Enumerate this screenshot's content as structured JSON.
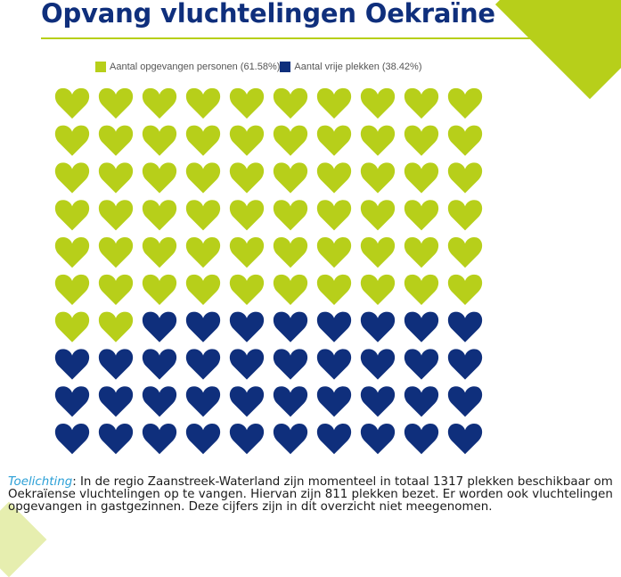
{
  "title": "Opvang vluchtelingen Oekraïne",
  "colors": {
    "accent": "#b7cf1a",
    "navy": "#0f2f7c",
    "note_label": "#2a9fd6"
  },
  "legend": {
    "items": [
      {
        "label": "Aantal opgevangen personen (61.58%)"
      },
      {
        "label": "Aantal vrije plekken (38.42%)"
      }
    ]
  },
  "chart_data": {
    "type": "waffle",
    "icon": "heart-icon",
    "rows": 10,
    "columns": 10,
    "series": [
      {
        "name": "Aantal opgevangen personen (61.58%)",
        "percent": 61.58,
        "icons": 62
      },
      {
        "name": "Aantal vrije plekken (38.42%)",
        "percent": 38.42,
        "icons": 38
      }
    ],
    "legend_position": "top"
  },
  "note": {
    "label": "Toelichting",
    "text": ": In de regio Zaanstreek-Waterland zijn momenteel in totaal 1317 plekken beschikbaar om Oekraïense vluchtelingen op te vangen. Hiervan zijn 811 plekken bezet. Er worden ook vluchtelingen opgevangen in gastgezinnen. Deze cijfers zijn in dit overzicht niet meegenomen."
  }
}
